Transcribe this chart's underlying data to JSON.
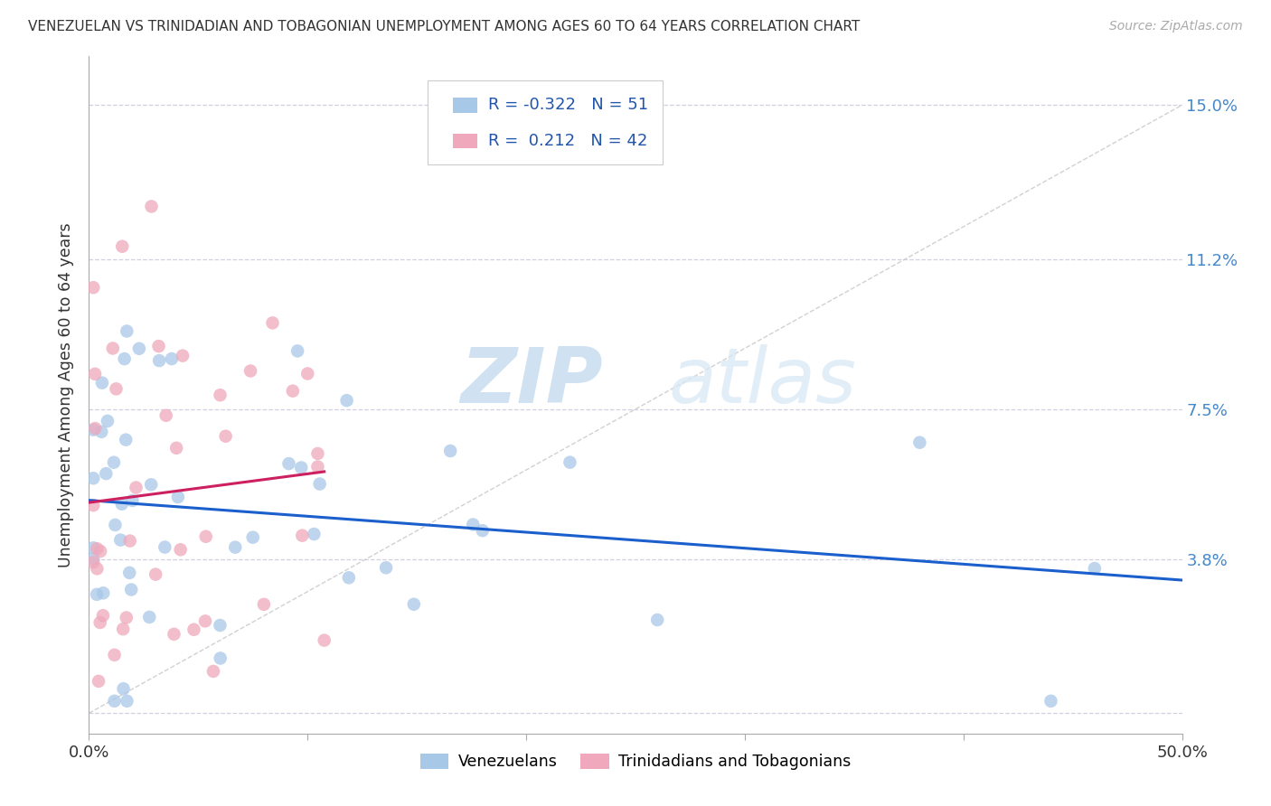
{
  "title": "VENEZUELAN VS TRINIDADIAN AND TOBAGONIAN UNEMPLOYMENT AMONG AGES 60 TO 64 YEARS CORRELATION CHART",
  "source": "Source: ZipAtlas.com",
  "ylabel": "Unemployment Among Ages 60 to 64 years",
  "xlim": [
    0,
    0.5
  ],
  "ylim": [
    -0.005,
    0.162
  ],
  "ytick_values": [
    0.0,
    0.038,
    0.075,
    0.112,
    0.15
  ],
  "right_ytick_values": [
    0.038,
    0.075,
    0.112,
    0.15
  ],
  "right_ytick_labels": [
    "3.8%",
    "7.5%",
    "11.2%",
    "15.0%"
  ],
  "legend_r_blue": "-0.322",
  "legend_n_blue": "51",
  "legend_r_pink": "0.212",
  "legend_n_pink": "42",
  "blue_color": "#a8c8e8",
  "pink_color": "#f0a8bc",
  "blue_line_color": "#1a5fcc",
  "pink_line_color": "#cc2060",
  "diagonal_line_color": "#cccccc",
  "grid_color": "#d0d0e0",
  "right_axis_color": "#4488cc",
  "watermark_zip": "ZIP",
  "watermark_atlas": "atlas",
  "venezuelans_label": "Venezuelans",
  "tt_label": "Trinidadians and Tobagonians",
  "blue_legend_color": "#4477cc",
  "pink_legend_color": "#cc4488",
  "legend_text_color": "#2255aa"
}
